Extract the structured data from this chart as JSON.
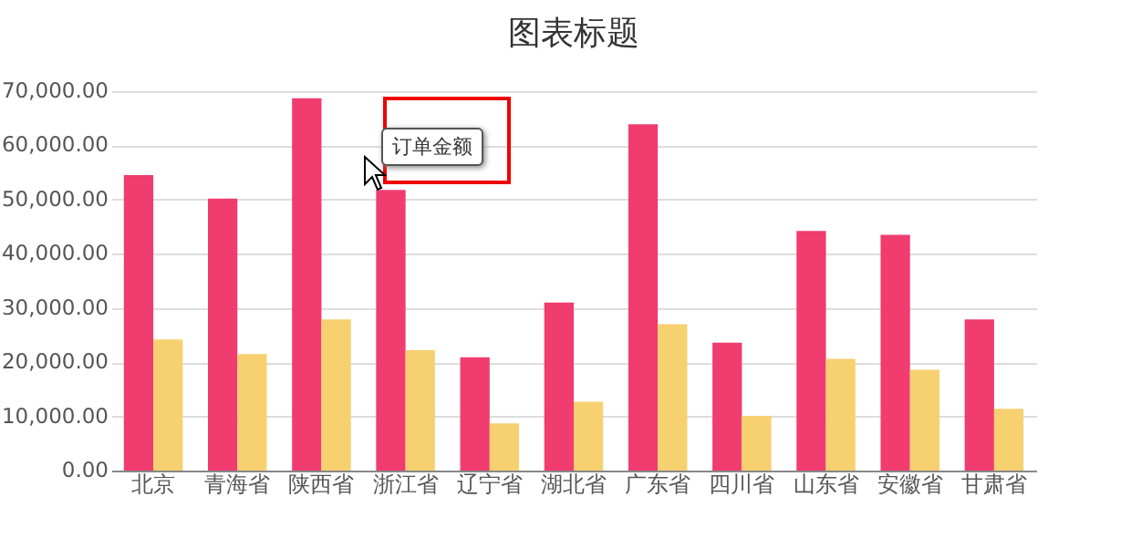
{
  "chart_data": {
    "type": "bar",
    "title": "图表标题",
    "categories": [
      "北京",
      "青海省",
      "陕西省",
      "浙江省",
      "辽宁省",
      "湖北省",
      "广东省",
      "四川省",
      "山东省",
      "安徽省",
      "甘肃省"
    ],
    "series": [
      {
        "color": "#f03c6e",
        "values": [
          54500,
          50200,
          68700,
          51800,
          20900,
          31000,
          63900,
          23600,
          44200,
          43500,
          27900
        ]
      },
      {
        "color": "#f7d070",
        "values": [
          24200,
          21500,
          27900,
          22200,
          8700,
          12700,
          27000,
          10100,
          20600,
          18600,
          11400
        ]
      }
    ],
    "ylim": [
      0,
      70000
    ],
    "yticks": [
      {
        "value": 0,
        "label": "0.00"
      },
      {
        "value": 10000,
        "label": "10,000.00"
      },
      {
        "value": 20000,
        "label": "20,000.00"
      },
      {
        "value": 30000,
        "label": "30,000.00"
      },
      {
        "value": 40000,
        "label": "40,000.00"
      },
      {
        "value": 50000,
        "label": "50,000.00"
      },
      {
        "value": 60000,
        "label": "60,000.00"
      },
      {
        "value": 70000,
        "label": "70,000.00"
      }
    ],
    "grid": "y",
    "annotations": [
      "订单金额"
    ]
  }
}
